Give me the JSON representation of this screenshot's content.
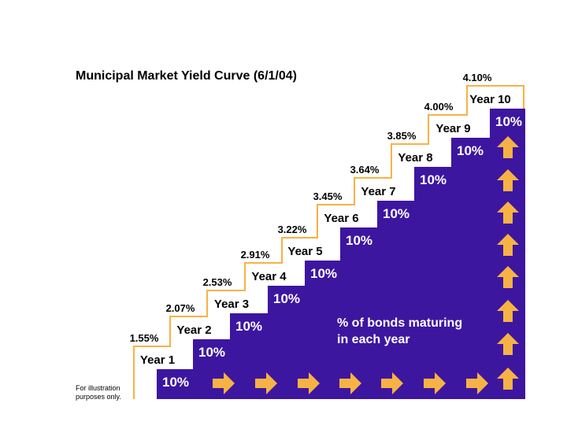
{
  "title": "Municipal Market Yield Curve (6/1/04)",
  "steps": [
    {
      "year": "Year 1",
      "yield": "1.55%",
      "share": "10%"
    },
    {
      "year": "Year 2",
      "yield": "2.07%",
      "share": "10%"
    },
    {
      "year": "Year 3",
      "yield": "2.53%",
      "share": "10%"
    },
    {
      "year": "Year 4",
      "yield": "2.91%",
      "share": "10%"
    },
    {
      "year": "Year 5",
      "yield": "3.22%",
      "share": "10%"
    },
    {
      "year": "Year 6",
      "yield": "3.45%",
      "share": "10%"
    },
    {
      "year": "Year 7",
      "yield": "3.64%",
      "share": "10%"
    },
    {
      "year": "Year 8",
      "yield": "3.85%",
      "share": "10%"
    },
    {
      "year": "Year 9",
      "yield": "4.00%",
      "share": "10%"
    },
    {
      "year": "Year 10",
      "yield": "4.10%",
      "share": "10%"
    }
  ],
  "note": [
    "% of bonds maturing",
    "in each year"
  ],
  "footnote": [
    "For illustration",
    "purposes only."
  ]
}
